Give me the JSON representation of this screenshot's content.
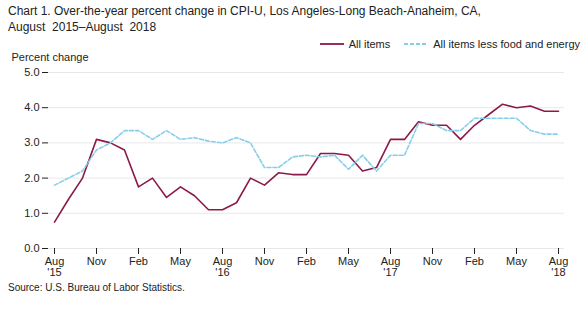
{
  "chart_data": {
    "type": "line",
    "title": "Chart 1. Over-the-year percent change in CPI-U, Los Angeles-Long Beach-Anaheim, CA,\nAugust  2015–August  2018",
    "ylabel": "Percent change",
    "caption": "Source: U.S. Bureau of Labor Statistics.",
    "categories": [
      "Aug\n'15",
      null,
      null,
      "Nov",
      null,
      null,
      "Feb",
      null,
      null,
      "May",
      null,
      null,
      "Aug\n'16",
      null,
      null,
      "Nov",
      null,
      null,
      "Feb",
      null,
      null,
      "May",
      null,
      null,
      "Aug\n'17",
      null,
      null,
      "Nov",
      null,
      null,
      "Feb",
      null,
      null,
      "May",
      null,
      null,
      "Aug\n'18"
    ],
    "series": [
      {
        "name": "All items",
        "color": "#8B1A4A",
        "line_style": "solid",
        "values": [
          0.75,
          1.4,
          2.0,
          3.1,
          3.0,
          2.8,
          1.75,
          2.0,
          1.45,
          1.75,
          1.5,
          1.1,
          1.1,
          1.3,
          2.0,
          1.8,
          2.15,
          2.1,
          2.1,
          2.7,
          2.7,
          2.65,
          2.2,
          2.3,
          3.1,
          3.1,
          3.6,
          3.5,
          3.5,
          3.1,
          3.5,
          3.8,
          4.1,
          4.0,
          4.05,
          3.9,
          3.9
        ]
      },
      {
        "name": "All items less food and energy",
        "color": "#87CEEB",
        "line_style": "dashed",
        "values": [
          1.8,
          2.0,
          2.2,
          2.8,
          3.0,
          3.35,
          3.35,
          3.1,
          3.35,
          3.1,
          3.15,
          3.05,
          3.0,
          3.15,
          3.0,
          2.3,
          2.3,
          2.6,
          2.65,
          2.6,
          2.65,
          2.25,
          2.65,
          2.2,
          2.65,
          2.65,
          3.55,
          3.55,
          3.35,
          3.35,
          3.7,
          3.7,
          3.7,
          3.7,
          3.35,
          3.25,
          3.25
        ]
      }
    ],
    "ylim": [
      0.0,
      5.0
    ],
    "yticks": [
      {
        "value": 0,
        "label": "0.0"
      },
      {
        "value": 1,
        "label": "1.0"
      },
      {
        "value": 2,
        "label": "2.0"
      },
      {
        "value": 3,
        "label": "3.0"
      },
      {
        "value": 4,
        "label": "4.0"
      },
      {
        "value": 5,
        "label": "5.0"
      }
    ],
    "grid": true,
    "legend": "upper right"
  }
}
